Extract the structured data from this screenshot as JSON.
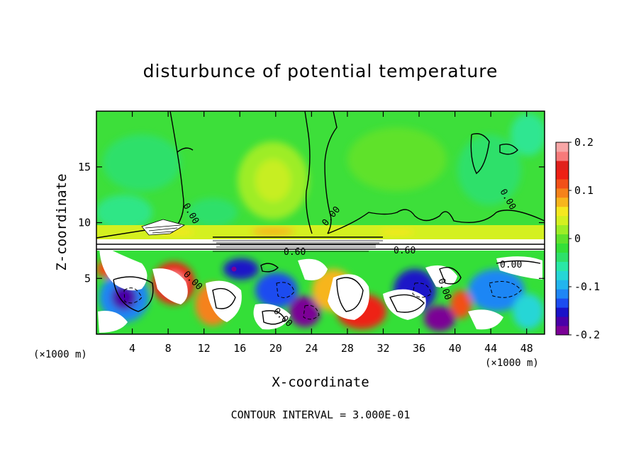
{
  "chart_data": {
    "type": "heatmap",
    "title": "disturbunce of potential temperature",
    "xlabel": "X-coordinate",
    "ylabel": "Z-coordinate",
    "x_unit": "(×1000 m)",
    "z_unit": "(×1000 m)",
    "xlim": [
      0,
      50
    ],
    "ylim": [
      0,
      20
    ],
    "x_ticks": [
      4,
      8,
      12,
      16,
      20,
      24,
      28,
      32,
      36,
      40,
      44,
      48
    ],
    "y_ticks": [
      5,
      10,
      15
    ],
    "colorbar": {
      "range": [
        -0.2,
        0.2
      ],
      "tick_labels": [
        "0.2",
        "0.1",
        "0",
        "-0.1",
        "-0.2"
      ],
      "tick_values": [
        0.2,
        0.1,
        0,
        -0.1,
        -0.2
      ],
      "colors": [
        "#7b0096",
        "#4a00a8",
        "#1a12c8",
        "#1c4cf0",
        "#1f86f5",
        "#22b5ee",
        "#26d6d6",
        "#29e8a6",
        "#2ee06a",
        "#34df38",
        "#5fe22c",
        "#9ded26",
        "#d4f020",
        "#f5e81f",
        "#f7b51c",
        "#f5821a",
        "#f25018",
        "#ee2014",
        "#e0201c",
        "#f77a7a",
        "#f7a6a6"
      ]
    },
    "contour_labels": [
      "0.00",
      "0.00",
      "0.00",
      "0.00",
      "0.60",
      "0.60",
      "0.00",
      "0.00",
      "0.00"
    ],
    "contour_interval": "CONTOUR INTERVAL = 3.000E-01"
  }
}
